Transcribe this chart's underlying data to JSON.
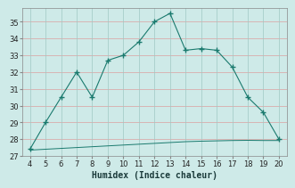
{
  "xlabel": "Humidex (Indice chaleur)",
  "x_main": [
    4,
    5,
    6,
    7,
    8,
    9,
    10,
    11,
    12,
    13,
    14,
    15,
    16,
    17,
    18,
    19,
    20
  ],
  "y_main": [
    27.4,
    29.0,
    30.5,
    32.0,
    30.5,
    32.7,
    33.0,
    33.8,
    35.0,
    35.5,
    33.3,
    33.4,
    33.3,
    32.3,
    30.5,
    29.6,
    28.0
  ],
  "x_flat": [
    4,
    5,
    6,
    7,
    8,
    9,
    10,
    11,
    12,
    13,
    14,
    15,
    16,
    17,
    18,
    19,
    20
  ],
  "y_flat": [
    27.35,
    27.4,
    27.45,
    27.5,
    27.55,
    27.6,
    27.65,
    27.7,
    27.75,
    27.8,
    27.85,
    27.88,
    27.9,
    27.92,
    27.93,
    27.92,
    27.92
  ],
  "line_color": "#1a7a6e",
  "bg_color": "#ceeae8",
  "grid_color_major": "#b0d4d0",
  "grid_color_minor": "#f0c0c0",
  "xlim": [
    3.5,
    20.5
  ],
  "ylim": [
    27,
    35.8
  ],
  "yticks": [
    27,
    28,
    29,
    30,
    31,
    32,
    33,
    34,
    35
  ],
  "xticks": [
    4,
    5,
    6,
    7,
    8,
    9,
    10,
    11,
    12,
    13,
    14,
    15,
    16,
    17,
    18,
    19,
    20
  ]
}
